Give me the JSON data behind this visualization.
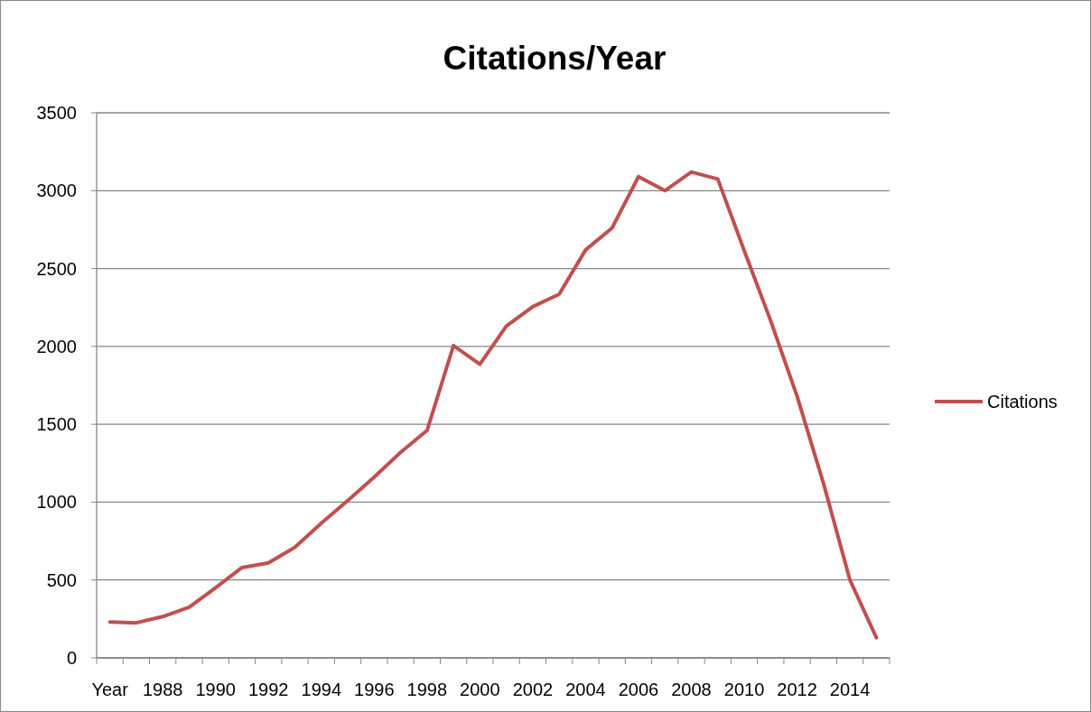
{
  "chart_data": {
    "type": "line",
    "title": "Citations/Year",
    "categories": [
      "Year",
      null,
      "1988",
      null,
      "1990",
      null,
      "1992",
      null,
      "1994",
      null,
      "1996",
      null,
      "1998",
      null,
      "2000",
      null,
      "2002",
      null,
      "2004",
      null,
      "2006",
      null,
      "2008",
      null,
      "2010",
      null,
      "2012",
      null,
      "2014",
      null
    ],
    "series": [
      {
        "name": "Citations",
        "color": "#c0504d",
        "values": [
          230,
          225,
          265,
          325,
          450,
          580,
          610,
          710,
          865,
          1010,
          1160,
          1320,
          1460,
          2005,
          1885,
          2130,
          2255,
          2335,
          2620,
          2760,
          3090,
          3000,
          3120,
          3075,
          2615,
          2165,
          1680,
          1120,
          500,
          130
        ]
      }
    ],
    "ylim": [
      0,
      3500
    ],
    "yticks": [
      0,
      500,
      1000,
      1500,
      2000,
      2500,
      3000,
      3500
    ],
    "grid": "y",
    "legend": "right",
    "marker": "none",
    "line_style": "solid"
  }
}
